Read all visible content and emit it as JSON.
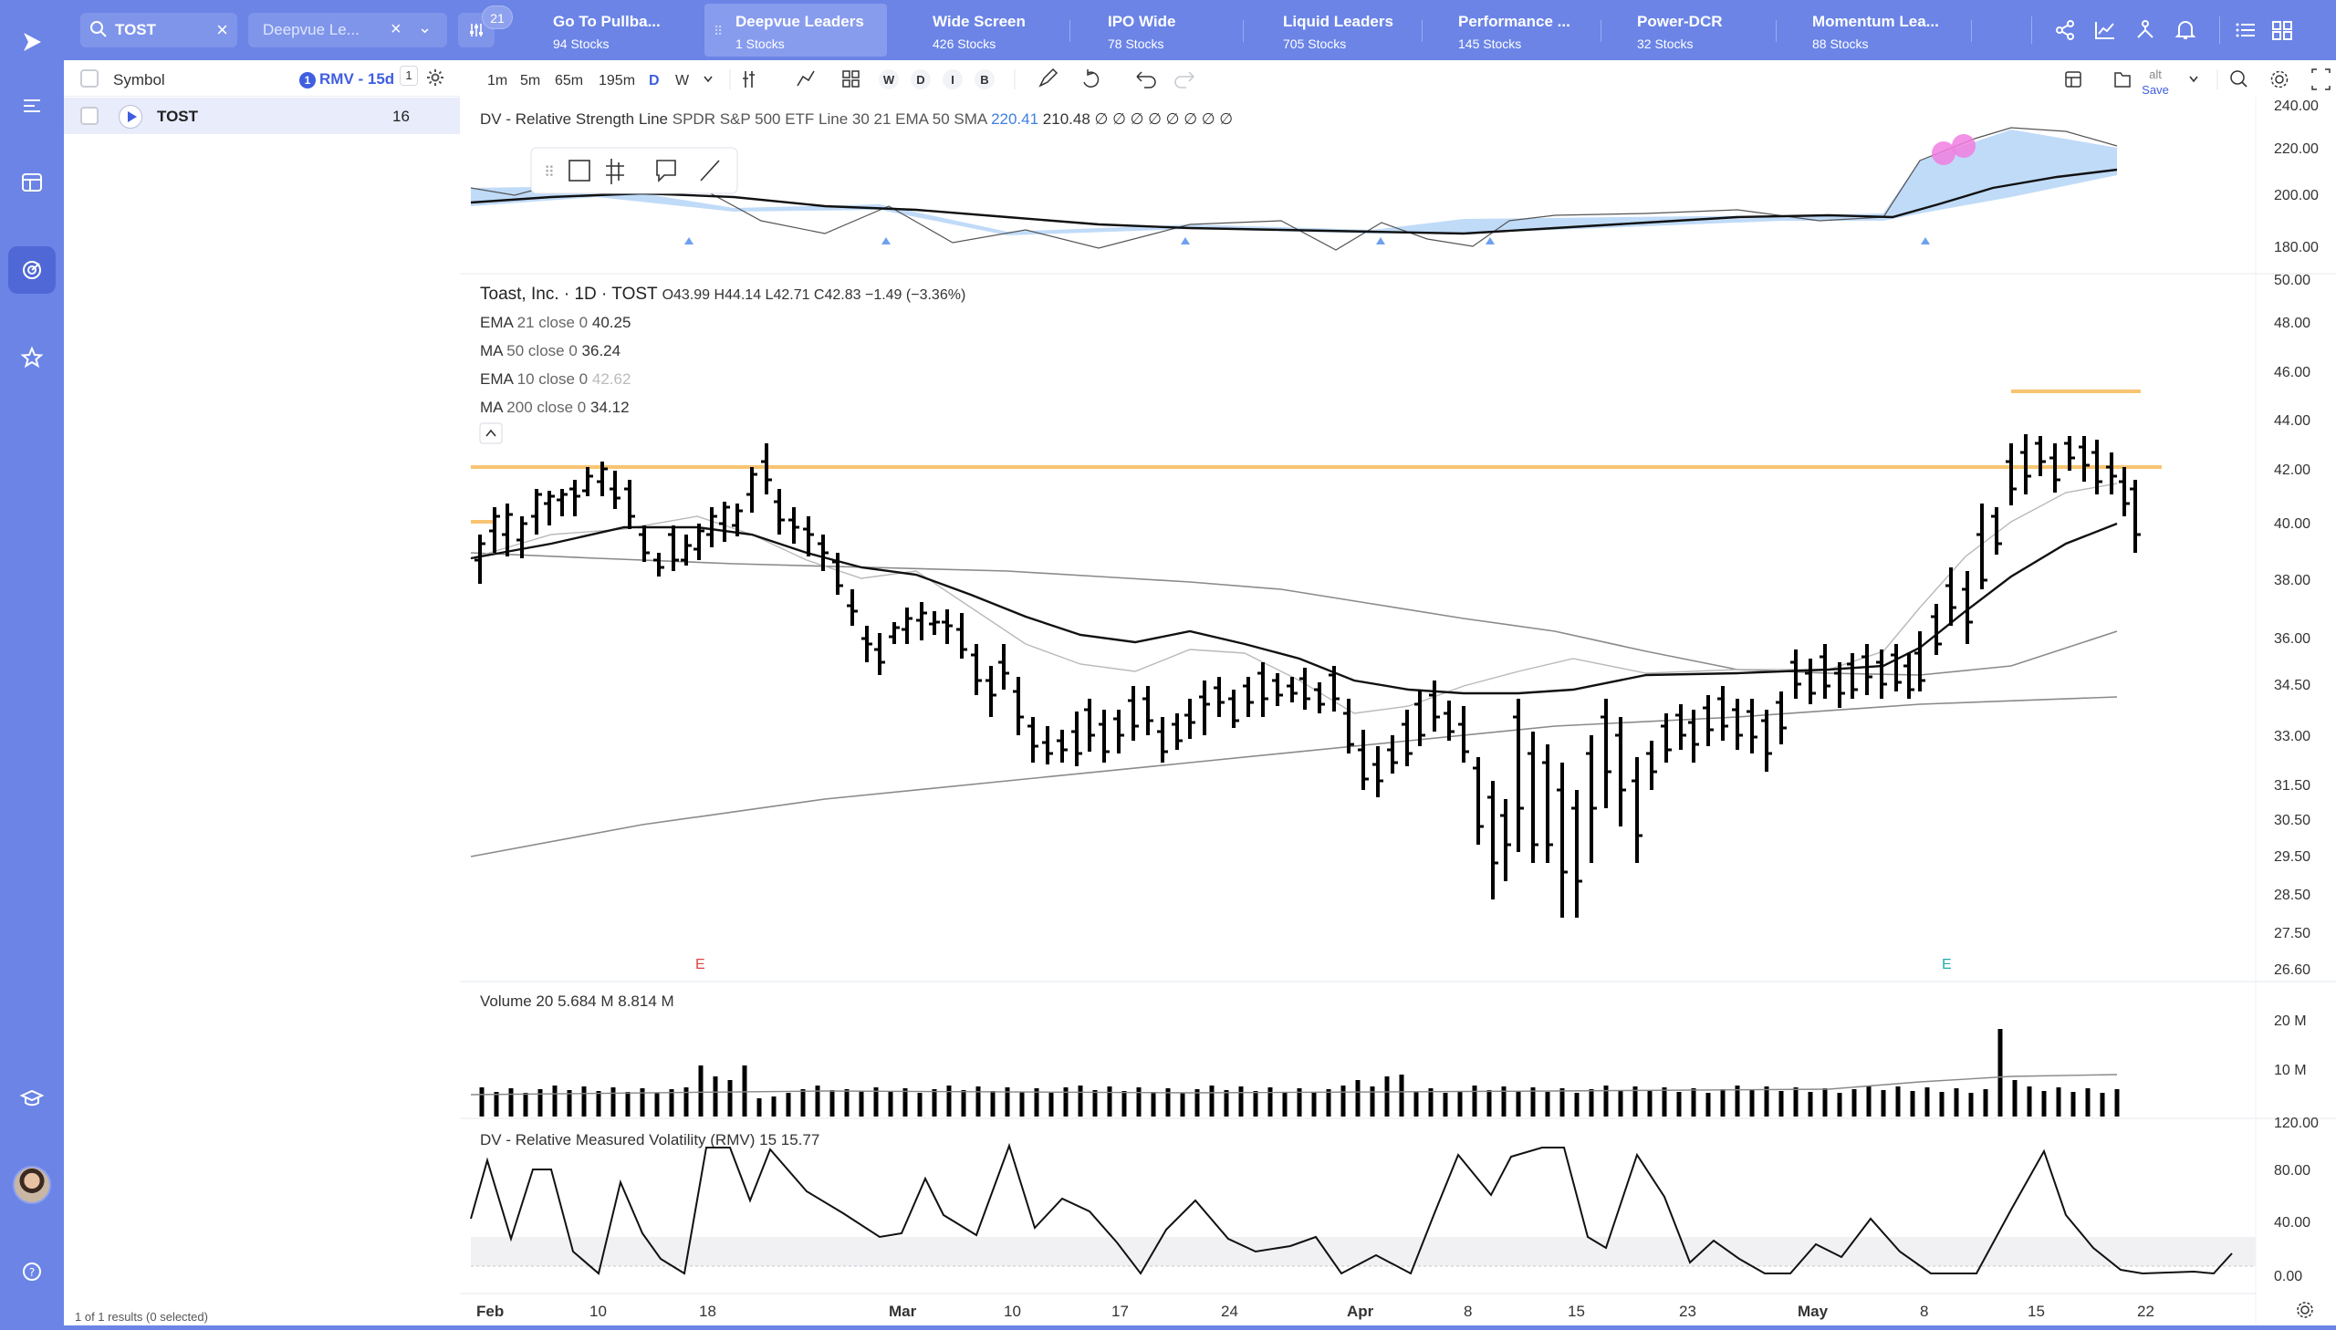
{
  "search": {
    "query": "TOST"
  },
  "list_dropdown": {
    "label": "Deepvue Le..."
  },
  "filter_badge": "21",
  "screens": [
    {
      "name": "Go To Pullba...",
      "count": "94 Stocks"
    },
    {
      "name": "Deepvue Leaders",
      "count": "1 Stocks"
    },
    {
      "name": "Wide Screen",
      "count": "426 Stocks"
    },
    {
      "name": "IPO Wide",
      "count": "78 Stocks"
    },
    {
      "name": "Liquid Leaders",
      "count": "705 Stocks"
    },
    {
      "name": "Performance ...",
      "count": "145 Stocks"
    },
    {
      "name": "Power-DCR",
      "count": "32 Stocks"
    },
    {
      "name": "Momentum Lea...",
      "count": "88 Stocks"
    }
  ],
  "watchlist": {
    "col_symbol": "Symbol",
    "rmv_label": "RMV - 15d",
    "rmv_num": "1",
    "rmv_count": "1",
    "rows": [
      {
        "symbol": "TOST",
        "value": "16"
      }
    ],
    "footer": "1 of 1 results (0 selected)"
  },
  "toolbar": {
    "intervals": [
      "1m",
      "5m",
      "65m",
      "195m",
      "D",
      "W"
    ],
    "active_interval": "D",
    "period_btns": [
      "W",
      "D",
      "I",
      "B"
    ],
    "save_top": "alt",
    "save_label": "Save"
  },
  "rs_panel": {
    "title": "DV - Relative Strength Line",
    "params": "SPDR S&P 500 ETF Line 30 21 EMA 50 SMA",
    "value1": "220.41",
    "value2": "210.48",
    "tail": "∅ ∅ ∅ ∅ ∅ ∅ ∅ ∅",
    "axis": [
      "240.00",
      "220.00",
      "200.00",
      "180.00"
    ]
  },
  "price_panel": {
    "title": "Toast, Inc. · 1D · TOST",
    "ohlc": "O43.99 H44.14 L42.71 C42.83 −1.49 (−3.36%)",
    "studies": [
      {
        "name": "EMA",
        "params": "21 close 0",
        "value": "40.25"
      },
      {
        "name": "MA",
        "params": "50 close 0",
        "value": "36.24"
      },
      {
        "name": "EMA",
        "params": "10 close 0",
        "value": "42.62"
      },
      {
        "name": "MA",
        "params": "200 close 0",
        "value": "34.12"
      }
    ],
    "axis": [
      "50.00",
      "48.00",
      "46.00",
      "44.00",
      "42.00",
      "40.00",
      "38.00",
      "36.00",
      "34.50",
      "33.00",
      "31.50",
      "30.50",
      "29.50",
      "28.50",
      "27.50",
      "26.60"
    ],
    "earnings_marks": [
      "E",
      "E"
    ]
  },
  "volume_panel": {
    "title": "Volume 20",
    "v1": "5.684 M",
    "v2": "8.814 M",
    "axis": [
      "20 M",
      "10 M"
    ]
  },
  "rmv_panel": {
    "title": "DV - Relative Measured Volatility (RMV)",
    "param": "15",
    "value": "15.77",
    "axis": [
      "120.00",
      "80.00",
      "40.00",
      "0.00"
    ]
  },
  "x_axis": [
    "Feb",
    "10",
    "18",
    "Mar",
    "10",
    "17",
    "24",
    "Apr",
    "8",
    "15",
    "23",
    "May",
    "8",
    "15",
    "22"
  ],
  "colors": {
    "brand": "#6b84e6",
    "level_line": "#f8c471",
    "rs_fill": "#b9d7f7",
    "accent": "#3f5ee0"
  }
}
